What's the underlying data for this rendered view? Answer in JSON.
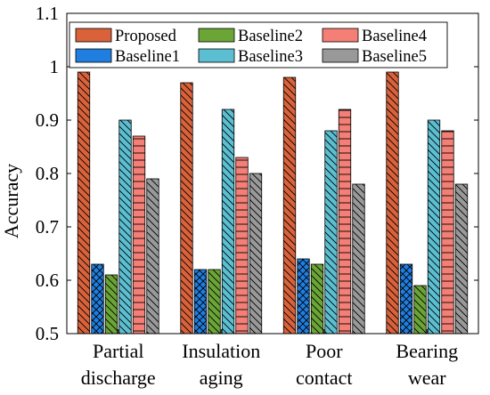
{
  "chart_data": {
    "type": "bar",
    "ylabel": "Accuracy",
    "xlabel": "",
    "ylim": [
      0.5,
      1.1
    ],
    "yticks": [
      0.5,
      0.6,
      0.7,
      0.8,
      0.9,
      1,
      1.1
    ],
    "yticklabels": [
      "0.5",
      "0.6",
      "0.7",
      "0.8",
      "0.9",
      "1",
      "1.1"
    ],
    "categories": [
      [
        "Partial",
        "discharge"
      ],
      [
        "Insulation",
        "aging"
      ],
      [
        "Poor",
        "contact"
      ],
      [
        "Bearing",
        "wear"
      ]
    ],
    "series": [
      {
        "name": "Proposed",
        "color": "#d9623b",
        "pattern": "diag-back",
        "values": [
          0.99,
          0.97,
          0.98,
          0.99
        ]
      },
      {
        "name": "Baseline1",
        "color": "#1f7ee0",
        "pattern": "crosshatch",
        "values": [
          0.63,
          0.62,
          0.64,
          0.63
        ]
      },
      {
        "name": "Baseline2",
        "color": "#6aa536",
        "pattern": "diag-back",
        "values": [
          0.61,
          0.62,
          0.63,
          0.59
        ]
      },
      {
        "name": "Baseline3",
        "color": "#5bbfd1",
        "pattern": "diag-back",
        "values": [
          0.9,
          0.92,
          0.88,
          0.9
        ]
      },
      {
        "name": "Baseline4",
        "color": "#f47f76",
        "pattern": "horizontal",
        "values": [
          0.87,
          0.83,
          0.92,
          0.88
        ]
      },
      {
        "name": "Baseline5",
        "color": "#999999",
        "pattern": "diag-back",
        "values": [
          0.79,
          0.8,
          0.78,
          0.78
        ]
      }
    ],
    "legend": {
      "position": "top",
      "columns": 3
    },
    "grid": false
  }
}
